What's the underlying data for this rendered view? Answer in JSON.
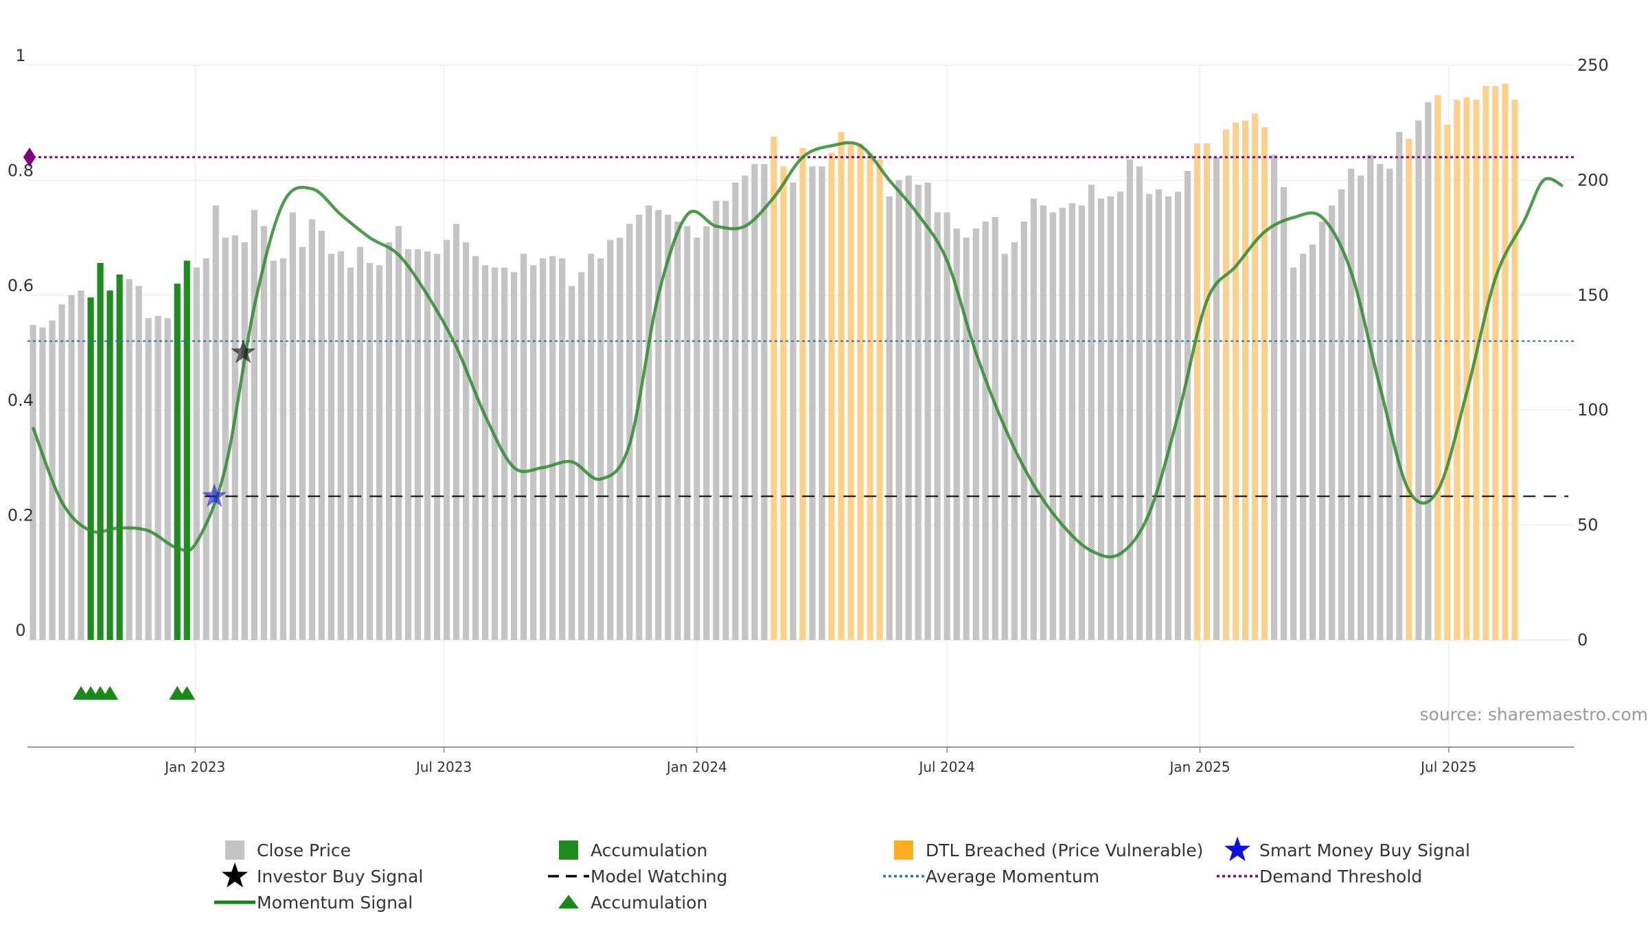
{
  "chart_data": {
    "type": "bar",
    "title": "",
    "source": "source: sharemaestro.com",
    "left_axis": {
      "ylim": [
        0,
        1
      ],
      "ticks": [
        "0",
        "0.2",
        "0.4",
        "0.6",
        "0.8",
        "1"
      ]
    },
    "right_axis": {
      "ylim": [
        0,
        250
      ],
      "ticks": [
        "0",
        "50",
        "100",
        "150",
        "200",
        "250"
      ]
    },
    "x_axis": {
      "range": [
        "2022-09-01",
        "2025-09-30"
      ],
      "ticks": [
        {
          "date": "2023-01-01",
          "label": "Jan 2023"
        },
        {
          "date": "2023-07-01",
          "label": "Jul 2023"
        },
        {
          "date": "2024-01-01",
          "label": "Jan 2024"
        },
        {
          "date": "2024-07-01",
          "label": "Jul 2024"
        },
        {
          "date": "2025-01-01",
          "label": "Jan 2025"
        },
        {
          "date": "2025-07-01",
          "label": "Jul 2025"
        }
      ]
    },
    "grid": true,
    "legend_position": "bottom",
    "colors": {
      "close_price": "#c4c4c4",
      "accumulation": "#1f8c1f",
      "dtl_breached": "#fdd089",
      "momentum": "#2e8b2e",
      "model_watching": "#000000",
      "average_momentum": "#1f77b4",
      "demand_threshold": "#800080",
      "smart_money": "#1010dd",
      "investor_buy": "#000000",
      "accumulation_marker": "#1a8a1a",
      "source_text": "#999999"
    },
    "close_price_weekly": {
      "start_date": "2022-09-05",
      "interval_days": 7,
      "status_codes": "0 = Close Price, 1 = Accumulation, 2 = DTL Breached (Price Vulnerable)",
      "values": [
        137,
        136,
        139,
        146,
        150,
        152,
        149,
        164,
        152,
        159,
        157,
        154,
        140,
        141,
        140,
        155,
        165,
        162,
        166,
        189,
        175,
        176,
        173,
        187,
        180,
        165,
        166,
        186,
        171,
        183,
        178,
        168,
        169,
        162,
        171,
        164,
        163,
        173,
        180,
        170,
        170,
        169,
        168,
        174,
        181,
        173,
        167,
        163,
        162,
        162,
        160,
        168,
        163,
        166,
        167,
        166,
        154,
        160,
        168,
        166,
        174,
        175,
        181,
        185,
        189,
        187,
        185,
        182,
        180,
        175,
        180,
        191,
        191,
        199,
        202,
        207,
        207,
        219,
        206,
        199,
        214,
        206,
        206,
        212,
        221,
        216,
        216,
        212,
        209,
        193,
        200,
        202,
        198,
        199,
        186,
        186,
        179,
        175,
        179,
        182,
        184,
        168,
        173,
        182,
        192,
        189,
        186,
        188,
        190,
        189,
        198,
        192,
        193,
        195,
        209,
        206,
        194,
        196,
        193,
        195,
        204,
        216,
        216,
        210,
        222,
        225,
        226,
        229,
        223,
        211,
        197,
        162,
        168,
        172,
        182,
        189,
        196,
        205,
        202,
        211,
        207,
        205,
        221,
        218,
        226,
        234,
        237,
        224,
        235,
        236,
        235,
        241,
        241,
        242,
        235
      ],
      "status": [
        0,
        0,
        0,
        0,
        0,
        0,
        1,
        1,
        1,
        1,
        0,
        0,
        0,
        0,
        0,
        1,
        1,
        0,
        0,
        0,
        0,
        0,
        0,
        0,
        0,
        0,
        0,
        0,
        0,
        0,
        0,
        0,
        0,
        0,
        0,
        0,
        0,
        0,
        0,
        0,
        0,
        0,
        0,
        0,
        0,
        0,
        0,
        0,
        0,
        0,
        0,
        0,
        0,
        0,
        0,
        0,
        0,
        0,
        0,
        0,
        0,
        0,
        0,
        0,
        0,
        0,
        0,
        0,
        0,
        0,
        0,
        0,
        0,
        0,
        0,
        0,
        0,
        2,
        2,
        0,
        2,
        0,
        0,
        2,
        2,
        2,
        2,
        2,
        2,
        0,
        0,
        0,
        0,
        0,
        0,
        0,
        0,
        0,
        0,
        0,
        0,
        0,
        0,
        0,
        0,
        0,
        0,
        0,
        0,
        0,
        0,
        0,
        0,
        0,
        0,
        0,
        0,
        0,
        0,
        0,
        0,
        2,
        2,
        0,
        2,
        2,
        2,
        2,
        2,
        0,
        0,
        0,
        0,
        0,
        0,
        0,
        0,
        0,
        0,
        0,
        0,
        0,
        0,
        2,
        0,
        0,
        2,
        2,
        2,
        2,
        2,
        2,
        2,
        2,
        2,
        2,
        2
      ]
    },
    "momentum_signal": {
      "x": [
        "2022-09-05",
        "2022-09-26",
        "2022-10-17",
        "2022-11-07",
        "2022-11-28",
        "2022-12-19",
        "2023-01-02",
        "2023-01-23",
        "2023-02-13",
        "2023-03-06",
        "2023-03-27",
        "2023-04-17",
        "2023-05-08",
        "2023-05-29",
        "2023-06-19",
        "2023-07-10",
        "2023-07-31",
        "2023-08-21",
        "2023-09-11",
        "2023-10-02",
        "2023-10-23",
        "2023-11-13",
        "2023-12-04",
        "2023-12-25",
        "2024-01-15",
        "2024-02-05",
        "2024-02-26",
        "2024-03-18",
        "2024-04-08",
        "2024-04-29",
        "2024-05-20",
        "2024-06-10",
        "2024-07-01",
        "2024-07-22",
        "2024-08-12",
        "2024-09-02",
        "2024-09-23",
        "2024-10-14",
        "2024-11-04",
        "2024-11-25",
        "2024-12-16",
        "2025-01-06",
        "2025-01-27",
        "2025-02-17",
        "2025-03-10",
        "2025-03-31",
        "2025-04-21",
        "2025-05-12",
        "2025-06-02",
        "2025-06-23",
        "2025-07-14",
        "2025-08-04",
        "2025-08-25",
        "2025-09-08",
        "2025-09-22"
      ],
      "y": [
        0.37,
        0.24,
        0.19,
        0.195,
        0.19,
        0.16,
        0.17,
        0.3,
        0.58,
        0.76,
        0.785,
        0.74,
        0.7,
        0.67,
        0.6,
        0.51,
        0.39,
        0.3,
        0.3,
        0.31,
        0.28,
        0.34,
        0.6,
        0.74,
        0.72,
        0.72,
        0.77,
        0.84,
        0.86,
        0.86,
        0.8,
        0.74,
        0.66,
        0.5,
        0.37,
        0.27,
        0.2,
        0.155,
        0.15,
        0.22,
        0.39,
        0.59,
        0.65,
        0.71,
        0.735,
        0.735,
        0.64,
        0.44,
        0.26,
        0.26,
        0.43,
        0.63,
        0.73,
        0.8,
        0.79
      ]
    },
    "model_watching": {
      "y": 0.25,
      "from": "2023-01-08",
      "to": "2025-09-30"
    },
    "average_momentum": {
      "y": 0.52
    },
    "demand_threshold": {
      "y": 0.84
    },
    "smart_money_buy_signal": [
      {
        "x": "2023-01-15",
        "y": 0.25
      }
    ],
    "investor_buy_signal": [
      {
        "x": "2023-02-05",
        "y": 0.5
      }
    ],
    "accumulation_markers": [
      "2022-10-10",
      "2022-10-17",
      "2022-10-24",
      "2022-10-31",
      "2022-12-19",
      "2022-12-26"
    ],
    "legend": [
      {
        "key": "close",
        "label": "Close Price"
      },
      {
        "key": "accum_bar",
        "label": "Accumulation"
      },
      {
        "key": "dtl",
        "label": "DTL Breached (Price Vulnerable)"
      },
      {
        "key": "smart",
        "label": "Smart Money Buy Signal"
      },
      {
        "key": "investor",
        "label": "Investor Buy Signal"
      },
      {
        "key": "watching",
        "label": "Model Watching"
      },
      {
        "key": "avg",
        "label": "Average Momentum"
      },
      {
        "key": "demand",
        "label": "Demand Threshold"
      },
      {
        "key": "momentum",
        "label": "Momentum Signal"
      },
      {
        "key": "accum_marker",
        "label": "Accumulation"
      }
    ]
  }
}
